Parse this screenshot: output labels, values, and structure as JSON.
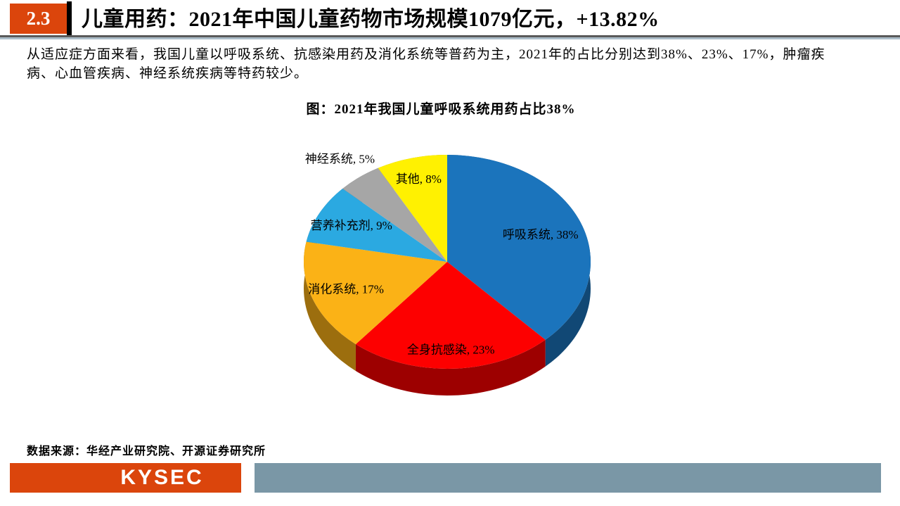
{
  "slide": {
    "section_number": "2.3",
    "title": "儿童用药：2021年中国儿童药物市场规模1079亿元，+13.82%",
    "body_lines": [
      "从适应症方面来看，我国儿童以呼吸系统、抗感染用药及消化系统等普药为主，2021年的占比分别达到38%、23%、17%，肿瘤疾",
      "病、心血管疾病、神经系统疾病等特药较少。"
    ],
    "source_text": "数据来源：华经产业研究院、开源证券研究所",
    "logo_text": "KYSEC"
  },
  "colors": {
    "accent_orange": "#DB450C",
    "footer_gray_blue": "#7A97A6",
    "header_line_dark": "#595959",
    "header_line_light": "#ACBDC9"
  },
  "chart_data": {
    "type": "pie",
    "style": "3d",
    "title": "图：2021年我国儿童呼吸系统用药占比38%",
    "unit": "%",
    "start_angle_deg": 0,
    "direction": "clockwise",
    "legend": "none",
    "labels": "inside slices; 神经系统 labeled outside",
    "slices": [
      {
        "label": "呼吸系统",
        "value": 38,
        "color": "#1B74BC",
        "label_r": 0.7
      },
      {
        "label": "全身抗感染",
        "value": 23,
        "color": "#FD0000",
        "label_r": 0.82
      },
      {
        "label": "消化系统",
        "value": 17,
        "color": "#FBB216",
        "label_r": 0.75
      },
      {
        "label": "营养补充剂",
        "value": 9,
        "color": "#2BA9E1",
        "label_r": 0.75
      },
      {
        "label": "神经系统",
        "value": 5,
        "color": "#A6A6A6",
        "label_r": 1.22
      },
      {
        "label": "其他",
        "value": 8,
        "color": "#FFF101",
        "label_r": 0.8
      }
    ]
  }
}
